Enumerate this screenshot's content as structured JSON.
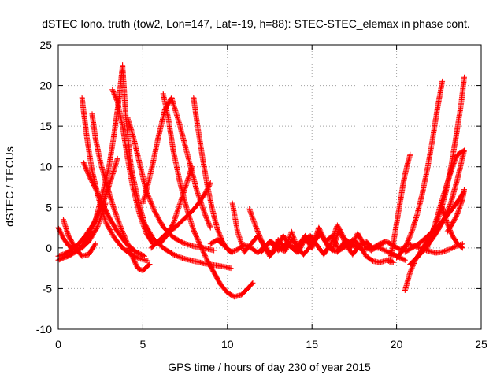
{
  "chart_data": {
    "type": "scatter",
    "title": "dSTEC Iono. truth (tow2, Lon=147, Lat=-19, h=88): STEC-STEC_elemax in phase cont.",
    "xlabel": "GPS time / hours of day 230 of year 2015",
    "ylabel": "dSTEC  / TECUs",
    "xlim": [
      0,
      25
    ],
    "ylim": [
      -10,
      25
    ],
    "xticks": [
      0,
      5,
      10,
      15,
      20,
      25
    ],
    "yticks": [
      -10,
      -5,
      0,
      5,
      10,
      15,
      20,
      25
    ],
    "grid": true,
    "marker": "+",
    "color": "#ff0000",
    "series": [
      {
        "x": [
          0.0,
          0.3,
          0.6,
          1.0,
          1.4,
          1.8,
          2.2,
          2.6,
          3.0,
          3.3,
          3.6,
          3.8
        ],
        "y": [
          -1.5,
          -1.2,
          -1.0,
          -0.5,
          0.2,
          1.5,
          3.5,
          6.5,
          10.0,
          14.0,
          18.5,
          22.5
        ]
      },
      {
        "x": [
          3.8,
          4.0,
          4.3,
          4.7,
          5.1,
          5.6,
          6.2,
          6.8,
          7.4,
          8.0,
          8.6,
          9.2,
          9.8,
          10.2
        ],
        "y": [
          22.5,
          16.0,
          10.0,
          6.0,
          3.0,
          1.2,
          0.0,
          -0.8,
          -1.3,
          -1.6,
          -1.9,
          -2.1,
          -2.3,
          -2.5
        ]
      },
      {
        "x": [
          1.4,
          1.7,
          2.0,
          2.4,
          2.8,
          3.3,
          3.8,
          4.3,
          4.8,
          5.3
        ],
        "y": [
          18.5,
          13.5,
          9.5,
          6.0,
          3.2,
          1.3,
          0.0,
          -0.8,
          -1.3,
          -1.6
        ]
      },
      {
        "x": [
          2.0,
          2.2,
          2.5,
          2.9,
          3.3,
          3.7,
          4.1,
          4.4,
          4.7,
          5.0,
          5.4
        ],
        "y": [
          16.5,
          13.5,
          10.5,
          7.5,
          4.8,
          2.5,
          0.5,
          -1.2,
          -2.5,
          -2.8,
          -2.0
        ]
      },
      {
        "x": [
          1.5,
          1.8,
          2.2,
          2.6,
          3.0,
          3.5,
          4.0,
          4.6,
          5.1
        ],
        "y": [
          10.5,
          9.0,
          7.3,
          5.5,
          3.8,
          2.0,
          0.6,
          -0.5,
          -1.0
        ]
      },
      {
        "x": [
          0.0,
          0.3,
          0.6,
          1.0,
          1.4,
          1.8,
          2.3,
          2.8
        ],
        "y": [
          2.5,
          1.2,
          0.3,
          -0.2,
          0.0,
          0.8,
          2.5,
          5.5
        ]
      },
      {
        "x": [
          0.0,
          0.4,
          0.8,
          1.2,
          1.6,
          2.1,
          2.6,
          3.1,
          3.5
        ],
        "y": [
          -1.0,
          -0.7,
          -0.2,
          0.5,
          1.5,
          3.0,
          5.2,
          8.3,
          11.0
        ]
      },
      {
        "x": [
          0.3,
          0.6,
          1.0,
          1.4,
          1.8,
          2.2
        ],
        "y": [
          3.5,
          1.5,
          0.0,
          -1.0,
          -0.8,
          0.5
        ]
      },
      {
        "x": [
          3.2,
          3.5,
          3.8,
          4.1,
          4.4,
          4.8,
          5.2,
          5.6
        ],
        "y": [
          19.5,
          18.0,
          15.0,
          11.0,
          7.5,
          4.2,
          1.8,
          0.5
        ]
      },
      {
        "x": [
          4.1,
          4.4,
          4.8,
          5.2,
          5.7,
          6.2,
          6.8,
          7.4,
          8.0,
          8.6,
          9.2
        ],
        "y": [
          16.0,
          14.0,
          10.5,
          7.0,
          4.5,
          2.6,
          1.3,
          0.6,
          0.2,
          0.0,
          -0.3
        ]
      },
      {
        "x": [
          6.2,
          6.5,
          6.8,
          7.2,
          7.6,
          8.0,
          8.4,
          8.8,
          9.2,
          9.6,
          10.0,
          10.4,
          10.8,
          11.2,
          11.5
        ],
        "y": [
          19.0,
          16.0,
          12.0,
          8.0,
          4.8,
          2.2,
          0.3,
          -1.5,
          -3.0,
          -4.5,
          -5.5,
          -6.0,
          -5.8,
          -5.0,
          -4.3
        ]
      },
      {
        "x": [
          5.0,
          5.3,
          5.6,
          5.9,
          6.3,
          6.7,
          7.2,
          7.7,
          8.2,
          8.7,
          9.0
        ],
        "y": [
          5.5,
          7.8,
          10.5,
          13.5,
          17.0,
          18.5,
          15.0,
          11.0,
          7.0,
          4.0,
          2.5
        ]
      },
      {
        "x": [
          5.5,
          5.9,
          6.4,
          6.9,
          7.4,
          7.9,
          8.3,
          8.7,
          9.0
        ],
        "y": [
          0.0,
          0.8,
          1.8,
          2.5,
          3.5,
          4.5,
          5.5,
          6.8,
          8.0
        ]
      },
      {
        "x": [
          6.0,
          6.4,
          6.8,
          7.2,
          7.6,
          7.9
        ],
        "y": [
          0.5,
          1.5,
          3.0,
          5.5,
          8.0,
          10.0
        ]
      },
      {
        "x": [
          8.0,
          8.2,
          8.5,
          8.8,
          9.1,
          9.4,
          9.7,
          10.0,
          10.3
        ],
        "y": [
          18.5,
          15.5,
          11.5,
          7.8,
          4.8,
          2.4,
          0.8,
          -0.2,
          -0.5
        ]
      },
      {
        "x": [
          9.0,
          9.4,
          9.8,
          10.2,
          10.6,
          11.0,
          11.4,
          11.8,
          12.2,
          12.6,
          13.0,
          13.4,
          13.8,
          14.2,
          14.6,
          15.0,
          15.4,
          15.8,
          16.2,
          16.6,
          17.0,
          17.4,
          17.8,
          18.2,
          18.6,
          19.0,
          19.4,
          19.8,
          20.2,
          20.6
        ],
        "y": [
          0.5,
          1.0,
          0.3,
          -0.5,
          -0.2,
          0.4,
          0.0,
          -0.6,
          0.2,
          0.8,
          0.0,
          -0.4,
          1.0,
          0.3,
          1.5,
          0.5,
          2.0,
          0.8,
          1.5,
          -0.3,
          0.2,
          1.0,
          0.4,
          0.8,
          0.0,
          0.5,
          0.8,
          0.3,
          -0.2,
          0.2
        ]
      },
      {
        "x": [
          10.3,
          10.6,
          11.0,
          11.4,
          11.8,
          12.2,
          12.6,
          13.0,
          13.4,
          13.8,
          14.2,
          14.6,
          15.0,
          15.4,
          15.8,
          16.2,
          16.6,
          17.0,
          17.4,
          17.8,
          18.2,
          18.6,
          19.0,
          19.4,
          19.8
        ],
        "y": [
          5.5,
          2.0,
          -0.5,
          0.5,
          1.5,
          0.2,
          -0.8,
          1.0,
          0.0,
          2.0,
          -0.5,
          1.2,
          0.0,
          2.5,
          0.8,
          -0.3,
          2.2,
          0.5,
          -0.8,
          0.3,
          -1.0,
          -1.6,
          -1.8,
          -1.5,
          -1.8
        ]
      },
      {
        "x": [
          11.3,
          11.7,
          12.1,
          12.5,
          12.9,
          13.3,
          13.7,
          14.1,
          14.5,
          14.9,
          15.3,
          15.7,
          16.1,
          16.5,
          16.9,
          17.3,
          17.7,
          18.1,
          18.5,
          18.9,
          19.3
        ],
        "y": [
          4.8,
          2.5,
          0.5,
          -1.0,
          0.0,
          1.5,
          0.2,
          -0.5,
          1.0,
          1.5,
          0.3,
          -0.8,
          0.5,
          2.8,
          1.2,
          0.0,
          1.8,
          0.3,
          -0.3,
          0.2,
          0.8
        ]
      },
      {
        "x": [
          12.0,
          12.5,
          13.0,
          13.5,
          14.0,
          14.5,
          15.0,
          15.5,
          16.0,
          16.5,
          17.0,
          17.5,
          18.0,
          18.5,
          19.0,
          19.5,
          20.0,
          20.5
        ],
        "y": [
          -0.5,
          0.8,
          -0.3,
          0.5,
          0.2,
          -0.8,
          0.4,
          1.8,
          0.0,
          -0.5,
          1.0,
          0.3,
          -0.2,
          0.0,
          0.0,
          -0.5,
          -1.0,
          -1.5
        ]
      },
      {
        "x": [
          20.0,
          20.3,
          20.6,
          20.9,
          21.2,
          21.5,
          21.8,
          22.1,
          22.4,
          22.7
        ],
        "y": [
          -1.2,
          -0.5,
          0.5,
          2.0,
          4.0,
          6.5,
          9.5,
          13.0,
          17.0,
          20.5
        ]
      },
      {
        "x": [
          20.5,
          20.8,
          21.1,
          21.4,
          21.7,
          22.0,
          22.3,
          22.6,
          22.9,
          23.2,
          23.5,
          23.8,
          24.0
        ],
        "y": [
          -5.2,
          -3.0,
          -1.5,
          -0.5,
          0.5,
          1.5,
          2.8,
          4.5,
          6.8,
          9.8,
          13.5,
          17.5,
          21.0
        ]
      },
      {
        "x": [
          19.6,
          19.8,
          20.0,
          20.2,
          20.4,
          20.6,
          20.8
        ],
        "y": [
          -1.8,
          0.5,
          3.0,
          5.5,
          8.0,
          10.0,
          11.5
        ]
      },
      {
        "x": [
          20.8,
          21.2,
          21.6,
          22.0,
          22.4,
          22.8,
          23.2,
          23.6,
          24.0
        ],
        "y": [
          -2.0,
          -1.2,
          -0.3,
          0.8,
          2.0,
          3.5,
          5.5,
          8.5,
          12.0
        ]
      },
      {
        "x": [
          21.8,
          22.1,
          22.4,
          22.7,
          23.0,
          23.3,
          23.6,
          24.0
        ],
        "y": [
          0.0,
          1.8,
          3.8,
          6.0,
          8.0,
          10.0,
          11.5,
          12.0
        ]
      },
      {
        "x": [
          20.5,
          20.9,
          21.3,
          21.7,
          22.1,
          22.5,
          22.9,
          23.3,
          23.7,
          24.0
        ],
        "y": [
          -0.5,
          0.0,
          0.5,
          1.2,
          2.0,
          2.8,
          3.8,
          4.8,
          6.0,
          7.0
        ]
      },
      {
        "x": [
          22.7,
          23.0,
          23.3,
          23.6,
          23.9
        ],
        "y": [
          5.0,
          3.0,
          1.5,
          0.5,
          0.0
        ]
      },
      {
        "x": [
          20.7,
          21.1,
          21.5,
          21.9,
          22.3,
          22.7,
          23.1,
          23.5,
          23.9
        ],
        "y": [
          0.5,
          0.2,
          -0.1,
          -0.4,
          -0.6,
          -0.5,
          -0.2,
          0.2,
          0.5
        ]
      },
      {
        "x": [
          23.0,
          23.3,
          23.6,
          23.9,
          24.0
        ],
        "y": [
          2.0,
          3.0,
          4.2,
          6.0,
          7.2
        ]
      }
    ]
  }
}
